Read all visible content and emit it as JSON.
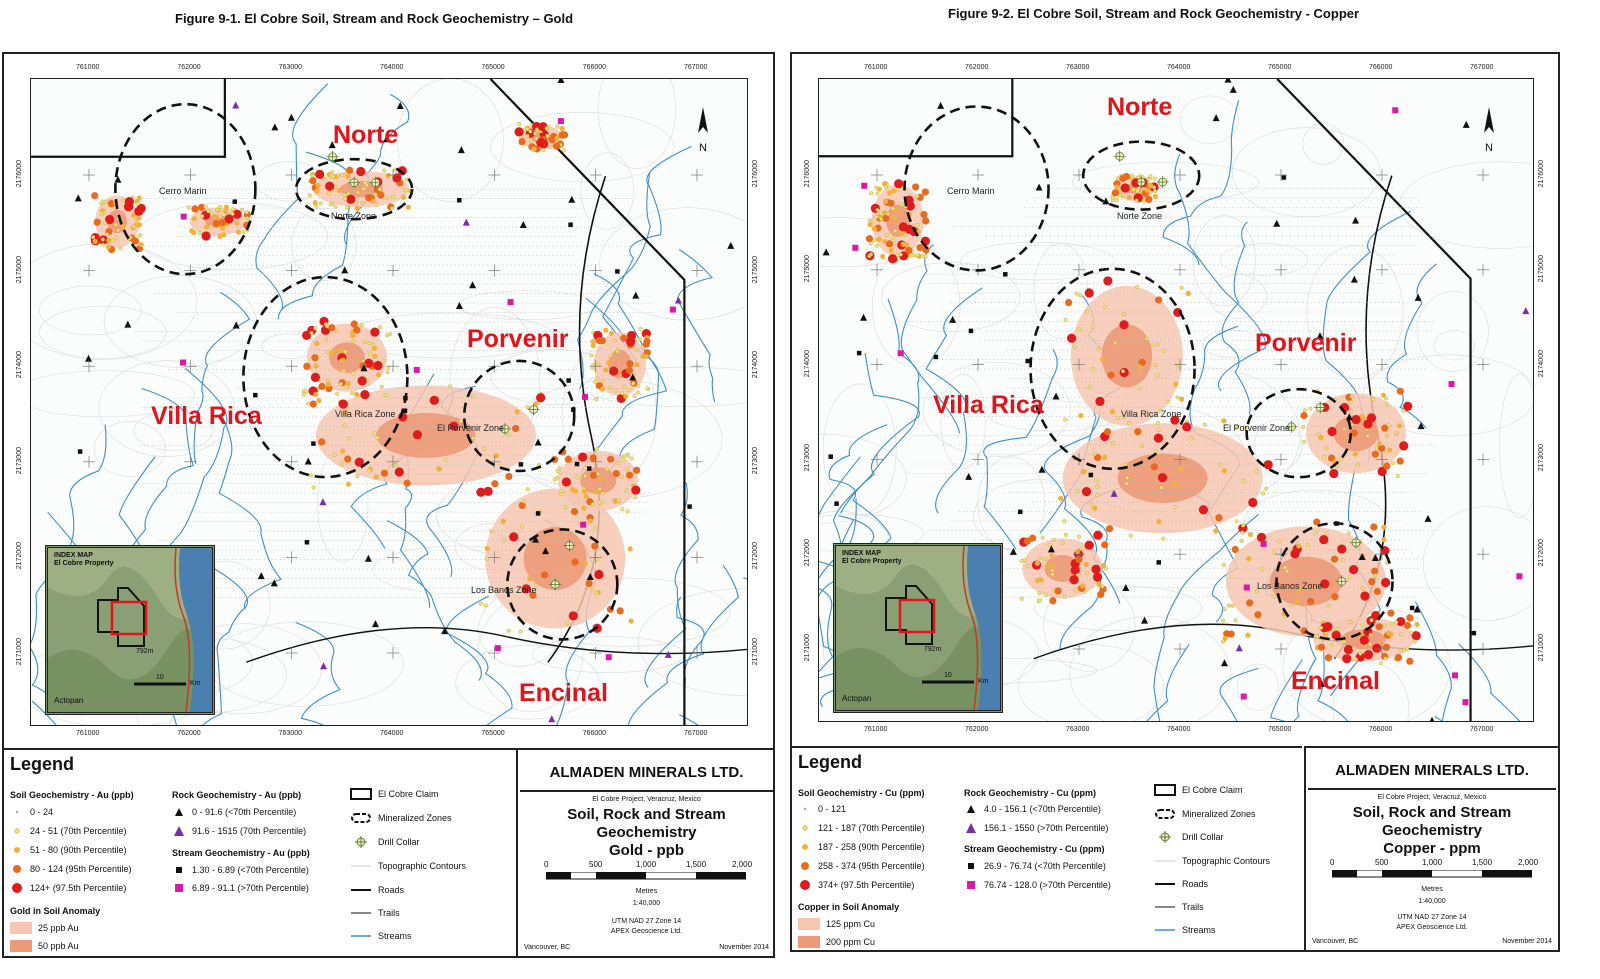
{
  "figures": [
    {
      "title": "Figure 9-1. El Cobre Soil, Stream and Rock Geochemistry – Gold",
      "x_ticks": [
        "761000",
        "762000",
        "763000",
        "764000",
        "765000",
        "766000",
        "767000"
      ],
      "y_ticks": [
        "2176000",
        "2175000",
        "2174000",
        "2173000",
        "2172000",
        "2171000"
      ],
      "zones": {
        "norte": "Norte",
        "porvenir": "Porvenir",
        "villa_rica": "Villa Rica",
        "encinal": "Encinal",
        "cerro_marin": "Cerro Marin",
        "norte_zone": "Norte Zone",
        "villa_rica_zone": "Villa Rica Zone",
        "el_porvenir_zone": "El Porvenir Zone",
        "los_banos_zone": "Los Banos Zone"
      },
      "index_map": {
        "title_line1": "INDEX MAP",
        "title_line2": "El Cobre Property",
        "elevation": "792m",
        "town": "Actopan",
        "scale": "10",
        "scale_unit": "Km"
      },
      "legend": {
        "title": "Legend",
        "soil_head": "Soil Geochemistry - Au (ppb)",
        "soil_items": [
          "0 - 24",
          "24 - 51 (70th Percentile)",
          "51 - 80 (90th Percentile)",
          "80 - 124 (95th Percentile)",
          "124+ (97.5th Percentile)"
        ],
        "anomaly_head": "Gold in Soil Anomaly",
        "anomaly_items": [
          "25 ppb Au",
          "50 ppb Au"
        ],
        "rock_head": "Rock Geochemistry - Au (ppb)",
        "rock_items": [
          "0 - 91.6 (<70th Percentile)",
          "91.6 - 1515 (70th Percentile)"
        ],
        "stream_head": "Stream Geochemistry - Au (ppb)",
        "stream_items": [
          "1.30 - 6.89 (<70th Percentile)",
          "6.89 - 91.1 (>70th Percentile)"
        ],
        "feature_items": [
          "El Cobre Claim",
          "Mineralized Zones",
          "Drill Collar",
          "Topographic Contours",
          "Roads",
          "Trails",
          "Streams"
        ]
      },
      "title_block": {
        "company": "ALMADEN MINERALS LTD.",
        "project": "El Cobre Project, Veracruz, Mexico",
        "line1": "Soil, Rock and Stream",
        "line2": "Geochemistry",
        "line3": "Gold - ppb",
        "scale_ticks": [
          "0",
          "500",
          "1,000",
          "1,500",
          "2,000"
        ],
        "scale_unit": "Metres",
        "ratio": "1:40,000",
        "datum": "UTM NAD 27 Zone 14",
        "author": "APEX Geoscience Ltd.",
        "place": "Vancouver, BC",
        "date": "November 2014"
      }
    },
    {
      "title": "Figure 9-2. El Cobre Soil, Stream and Rock Geochemistry - Copper",
      "x_ticks": [
        "761000",
        "762000",
        "763000",
        "764000",
        "765000",
        "766000",
        "767000"
      ],
      "y_ticks": [
        "2176000",
        "2175000",
        "2174000",
        "2173000",
        "2172000",
        "2171000"
      ],
      "zones": {
        "norte": "Norte",
        "porvenir": "Porvenir",
        "villa_rica": "Villa Rica",
        "encinal": "Encinal",
        "cerro_marin": "Cerro Marin",
        "norte_zone": "Norte Zone",
        "villa_rica_zone": "Villa Rica Zone",
        "el_porvenir_zone": "El Porvenir Zone",
        "los_banos_zone": "Los Banos Zone"
      },
      "index_map": {
        "title_line1": "INDEX MAP",
        "title_line2": "El Cobre Property",
        "elevation": "792m",
        "town": "Actopan",
        "scale": "10",
        "scale_unit": "Km"
      },
      "legend": {
        "title": "Legend",
        "soil_head": "Soil Geochemistry - Cu (ppm)",
        "soil_items": [
          "0 - 121",
          "121 - 187 (70th Percentile)",
          "187 - 258 (90th Percentile)",
          "258 - 374 (95th Percentile)",
          "374+ (97.5th Percentile)"
        ],
        "anomaly_head": "Copper in Soil Anomaly",
        "anomaly_items": [
          "125 ppm Cu",
          "200 ppm Cu"
        ],
        "rock_head": "Rock Geochemistry - Cu (ppm)",
        "rock_items": [
          "4.0 - 156.1 (<70th Percentile)",
          "156.1 - 1550 (>70th Percentile)"
        ],
        "stream_head": "Stream Geochemistry - Cu (ppm)",
        "stream_items": [
          "26.9 - 76.74 (<70th Percentile)",
          "76.74 - 128.0 (>70th Percentile)"
        ],
        "feature_items": [
          "El Cobre Claim",
          "Mineralized Zones",
          "Drill Collar",
          "Topographic Contours",
          "Roads",
          "Trails",
          "Streams"
        ]
      },
      "title_block": {
        "company": "ALMADEN MINERALS LTD.",
        "project": "El Cobre Project, Veracruz, Mexico",
        "line1": "Soil, Rock and Stream",
        "line2": "Geochemistry",
        "line3": "Copper - ppm",
        "scale_ticks": [
          "0",
          "500",
          "1,000",
          "1,500",
          "2,000"
        ],
        "scale_unit": "Metres",
        "ratio": "1:40,000",
        "datum": "UTM NAD 27 Zone 14",
        "author": "APEX Geoscience Ltd.",
        "place": "Vancouver, BC",
        "date": "November 2014"
      }
    }
  ],
  "colors": {
    "zone_label": "#e0141b",
    "anomaly_light": "#f7c6b0",
    "anomaly_dark": "#ec9a77",
    "high_dot": "#e01b1b",
    "mid_dot": "#e96a1e",
    "low_dot": "#f2b13a",
    "faint_dot": "#f2e27a",
    "stream": "#3e8ec9",
    "stream_sample": "#d81aa7",
    "claim": "#111111"
  }
}
